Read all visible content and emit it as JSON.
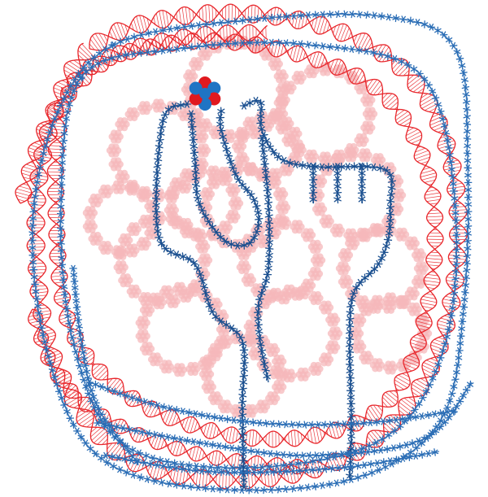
{
  "palette": {
    "background": "#ffffff",
    "helix_red": "#e8262b",
    "pale_pink": "#f6b8bb",
    "chain_blue": "#2a6db5",
    "chain_blue_dark": "#1a4f8f",
    "node_blue": "#1f74c4",
    "node_red": "#e0191f"
  },
  "motifs": {
    "helix": "double-helix",
    "pale_clusters": "flower-rings",
    "blue_chains": "star-link-chains",
    "center_node": "seven-circle-flower"
  }
}
